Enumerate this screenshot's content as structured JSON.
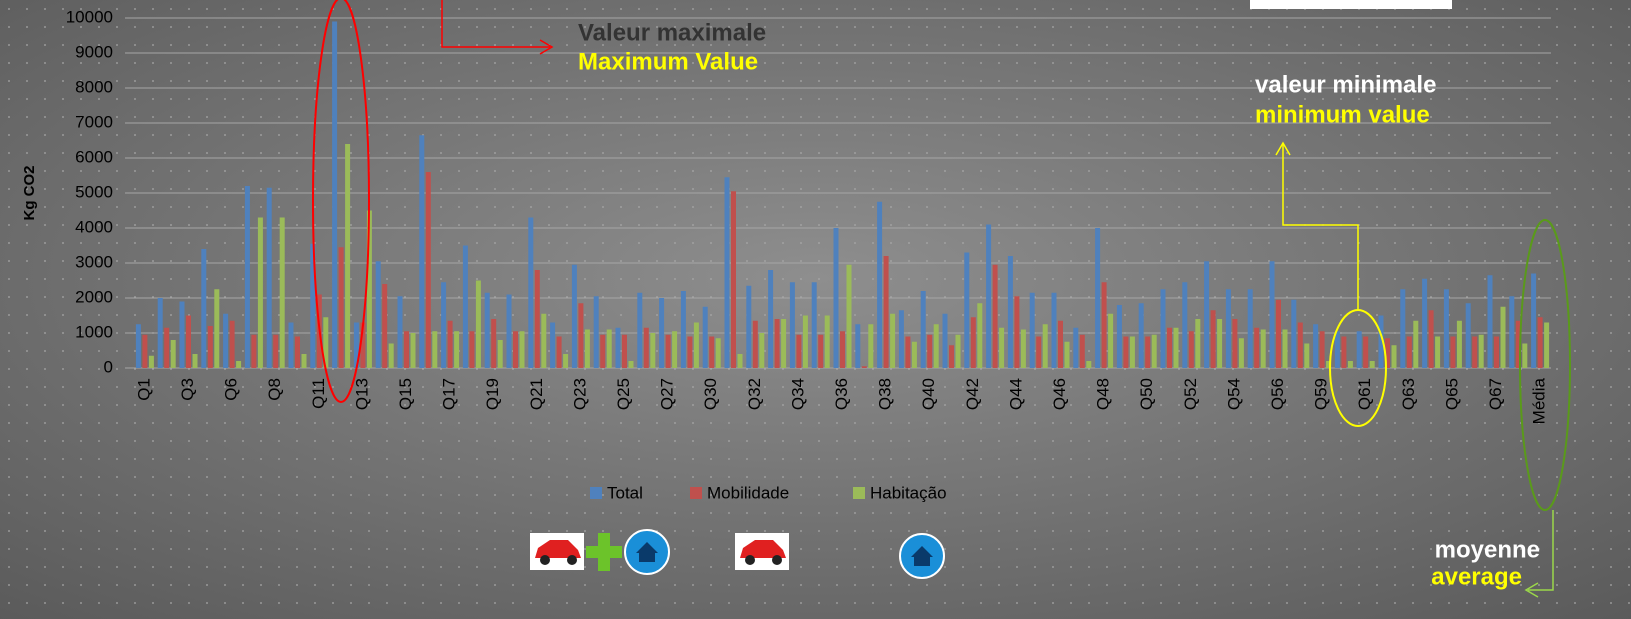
{
  "chart_data": {
    "type": "bar",
    "y_label": "Kg CO2",
    "categories": [
      "Q1",
      null,
      "Q3",
      null,
      "Q6",
      null,
      "Q8",
      null,
      "Q11",
      null,
      "Q13",
      null,
      "Q15",
      null,
      "Q17",
      null,
      "Q19",
      null,
      "Q21",
      null,
      "Q23",
      null,
      "Q25",
      null,
      "Q27",
      null,
      "Q30",
      null,
      "Q32",
      null,
      "Q34",
      null,
      "Q36",
      null,
      "Q38",
      null,
      "Q40",
      null,
      "Q42",
      null,
      "Q44",
      null,
      "Q46",
      null,
      "Q48",
      null,
      "Q50",
      null,
      "Q52",
      null,
      "Q54",
      null,
      "Q56",
      null,
      "Q59",
      null,
      "Q61",
      null,
      "Q63",
      null,
      "Q65",
      null,
      "Q67",
      null,
      "Média"
    ],
    "series": [
      {
        "name": "Total",
        "color": "#4f81bd",
        "values": [
          1250,
          2000,
          1900,
          3400,
          1550,
          5200,
          5150,
          1300,
          3550,
          9900,
          1300,
          3050,
          2050,
          6650,
          2450,
          3500,
          2150,
          2100,
          4300,
          1300,
          2950,
          2050,
          1150,
          2150,
          2000,
          2200,
          1750,
          5450,
          2350,
          2800,
          2450,
          2450,
          4000,
          1250,
          4750,
          1650,
          2200,
          1550,
          3300,
          4100,
          3200,
          2150,
          2150,
          1150,
          4000,
          1800,
          1850,
          2250,
          2450,
          3050,
          2250,
          2250,
          3050,
          1950,
          1250,
          1050,
          1050,
          1500,
          2250,
          2550,
          2250,
          1850,
          2650,
          2050,
          2700
        ]
      },
      {
        "name": "Mobilidade",
        "color": "#c0504d",
        "values": [
          950,
          1150,
          1500,
          1200,
          1350,
          950,
          950,
          900,
          2100,
          3450,
          1300,
          2400,
          1050,
          5600,
          1350,
          1050,
          1400,
          1050,
          2800,
          900,
          1850,
          950,
          950,
          1150,
          950,
          900,
          900,
          5050,
          1350,
          1400,
          950,
          950,
          1050,
          50,
          3200,
          900,
          950,
          650,
          1450,
          2950,
          2050,
          900,
          1350,
          950,
          2450,
          900,
          900,
          1150,
          1050,
          1650,
          1400,
          1150,
          1950,
          1300,
          1050,
          900,
          900,
          850,
          900,
          1650,
          900,
          900,
          900,
          1350,
          1450
        ]
      },
      {
        "name": "Habitação",
        "color": "#9bbb59",
        "values": [
          350,
          800,
          400,
          2250,
          200,
          4300,
          4300,
          400,
          1450,
          6400,
          4500,
          700,
          1000,
          1050,
          1050,
          2500,
          800,
          1050,
          1550,
          400,
          1100,
          1100,
          200,
          1000,
          1050,
          1300,
          850,
          400,
          1000,
          1400,
          1500,
          1500,
          2950,
          1250,
          1550,
          750,
          1250,
          950,
          1850,
          1150,
          1100,
          1250,
          750,
          200,
          1550,
          900,
          950,
          1150,
          1400,
          1400,
          850,
          1100,
          1100,
          700,
          200,
          200,
          200,
          650,
          1350,
          900,
          1350,
          950,
          1750,
          700,
          1300
        ]
      }
    ],
    "ylim": [
      0,
      10000
    ],
    "yticks": [
      0,
      1000,
      2000,
      3000,
      4000,
      5000,
      6000,
      7000,
      8000,
      9000,
      10000
    ],
    "grid": true,
    "legend": "bottom",
    "annotations": {
      "max_fr": "Valeur maximale",
      "max_en": "Maximum Value",
      "min_fr": "valeur minimale",
      "min_en": "minimum value",
      "avg_fr": "moyenne",
      "avg_en": "average"
    }
  }
}
